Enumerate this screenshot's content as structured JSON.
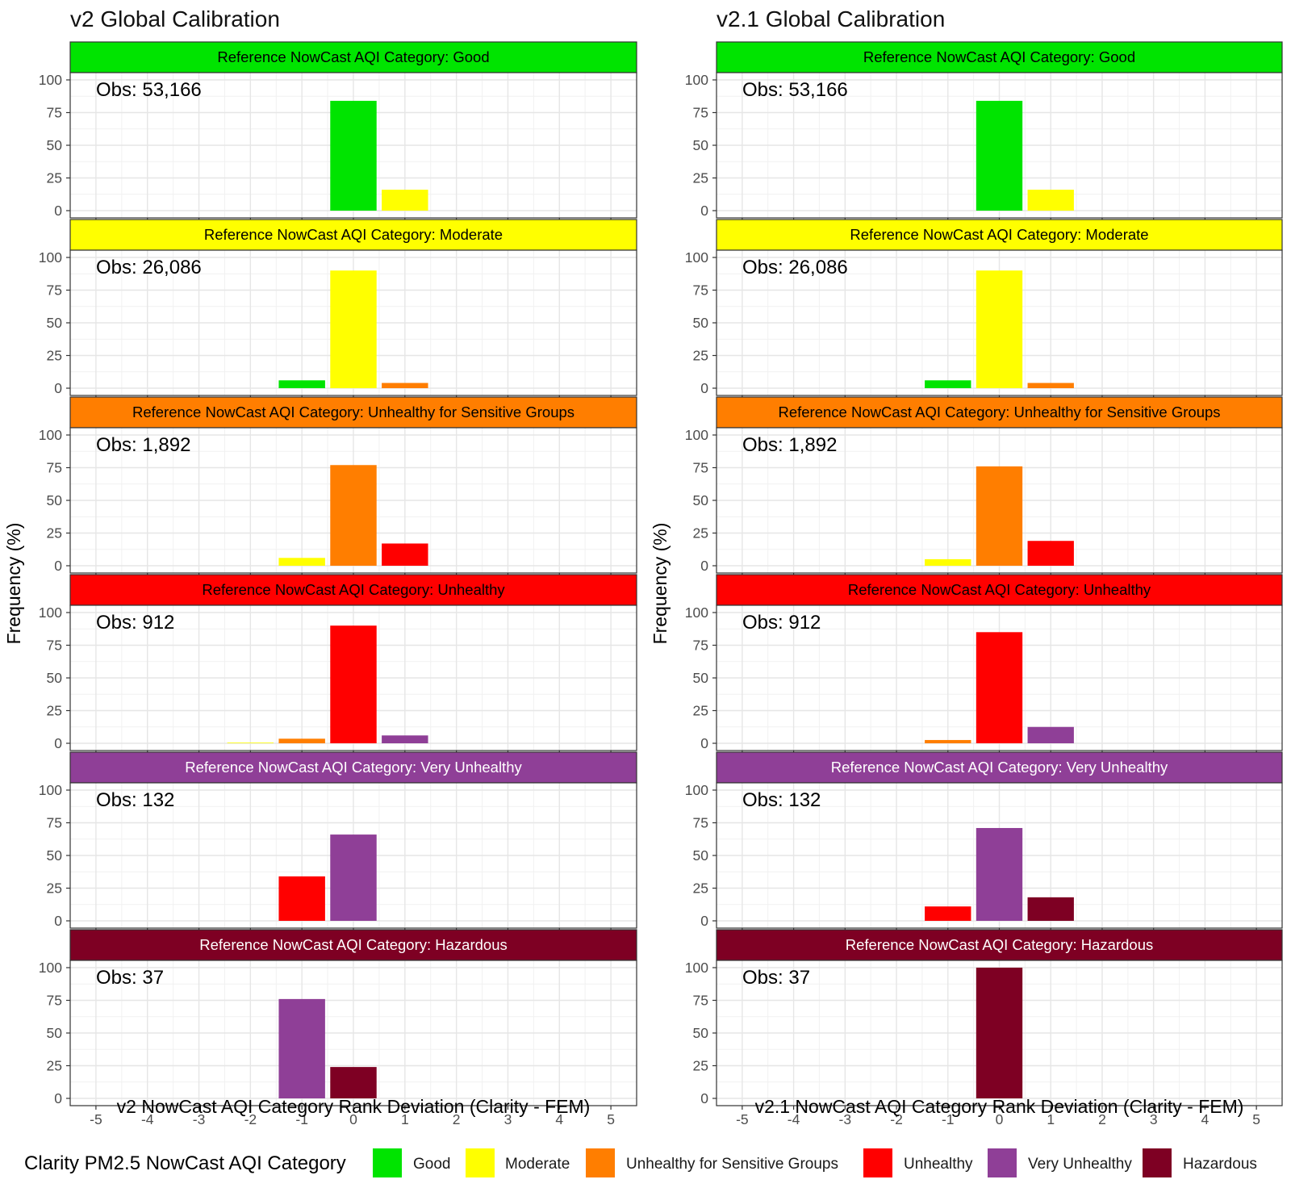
{
  "figure": {
    "ylabel": "Frequency (%)",
    "legend_title": "Clarity PM2.5 NowCast AQI Category",
    "legend": [
      {
        "label": "Good",
        "color": "#00E400"
      },
      {
        "label": "Moderate",
        "color": "#FFFF00"
      },
      {
        "label": "Unhealthy for Sensitive Groups",
        "color": "#FF7E00"
      },
      {
        "label": "Unhealthy",
        "color": "#FF0000"
      },
      {
        "label": "Very Unhealthy",
        "color": "#8F3F97"
      },
      {
        "label": "Hazardous",
        "color": "#7E0023"
      }
    ]
  },
  "chart_data": [
    {
      "type": "bar",
      "title": "v2 Global Calibration",
      "xlabel": "v2 NowCast AQI Category Rank Deviation (Clarity - FEM)",
      "ylabel": "Frequency (%)",
      "x_ticks": [
        -5,
        -4,
        -3,
        -2,
        -1,
        0,
        1,
        2,
        3,
        4,
        5
      ],
      "y_ticks": [
        0,
        25,
        50,
        75,
        100
      ],
      "xlim": [
        -5.5,
        5.5
      ],
      "ylim": [
        0,
        100
      ],
      "grid": true,
      "legend_position": "bottom",
      "facets": [
        {
          "strip": "Reference NowCast AQI Category: Good",
          "strip_color": "#00E400",
          "strip_text_color": "#000000",
          "obs": "Obs: 53,166",
          "bars": [
            {
              "x": 0,
              "value": 84,
              "category": "Good"
            },
            {
              "x": 1,
              "value": 16,
              "category": "Moderate"
            }
          ]
        },
        {
          "strip": "Reference NowCast AQI Category: Moderate",
          "strip_color": "#FFFF00",
          "strip_text_color": "#000000",
          "obs": "Obs: 26,086",
          "bars": [
            {
              "x": -1,
              "value": 6,
              "category": "Good"
            },
            {
              "x": 0,
              "value": 90,
              "category": "Moderate"
            },
            {
              "x": 1,
              "value": 4,
              "category": "Unhealthy for Sensitive Groups"
            }
          ]
        },
        {
          "strip": "Reference NowCast AQI Category: Unhealthy for Sensitive Groups",
          "strip_color": "#FF7E00",
          "strip_text_color": "#000000",
          "obs": "Obs: 1,892",
          "bars": [
            {
              "x": -1,
              "value": 6,
              "category": "Moderate"
            },
            {
              "x": 0,
              "value": 77,
              "category": "Unhealthy for Sensitive Groups"
            },
            {
              "x": 1,
              "value": 17,
              "category": "Unhealthy"
            }
          ]
        },
        {
          "strip": "Reference NowCast AQI Category: Unhealthy",
          "strip_color": "#FF0000",
          "strip_text_color": "#000000",
          "obs": "Obs: 912",
          "bars": [
            {
              "x": -2,
              "value": 0.5,
              "category": "Moderate"
            },
            {
              "x": -1,
              "value": 3.5,
              "category": "Unhealthy for Sensitive Groups"
            },
            {
              "x": 0,
              "value": 90,
              "category": "Unhealthy"
            },
            {
              "x": 1,
              "value": 6,
              "category": "Very Unhealthy"
            }
          ]
        },
        {
          "strip": "Reference NowCast AQI Category: Very Unhealthy",
          "strip_color": "#8F3F97",
          "strip_text_color": "#FFFFFF",
          "obs": "Obs: 132",
          "bars": [
            {
              "x": -1,
              "value": 34,
              "category": "Unhealthy"
            },
            {
              "x": 0,
              "value": 66,
              "category": "Very Unhealthy"
            }
          ]
        },
        {
          "strip": "Reference NowCast AQI Category: Hazardous",
          "strip_color": "#7E0023",
          "strip_text_color": "#FFFFFF",
          "obs": "Obs: 37",
          "bars": [
            {
              "x": -1,
              "value": 76,
              "category": "Very Unhealthy"
            },
            {
              "x": 0,
              "value": 24,
              "category": "Hazardous"
            }
          ]
        }
      ]
    },
    {
      "type": "bar",
      "title": "v2.1 Global Calibration",
      "xlabel": "v2.1 NowCast AQI Category Rank Deviation (Clarity - FEM)",
      "ylabel": "Frequency (%)",
      "x_ticks": [
        -5,
        -4,
        -3,
        -2,
        -1,
        0,
        1,
        2,
        3,
        4,
        5
      ],
      "y_ticks": [
        0,
        25,
        50,
        75,
        100
      ],
      "xlim": [
        -5.5,
        5.5
      ],
      "ylim": [
        0,
        100
      ],
      "grid": true,
      "legend_position": "bottom",
      "facets": [
        {
          "strip": "Reference NowCast AQI Category: Good",
          "strip_color": "#00E400",
          "strip_text_color": "#000000",
          "obs": "Obs: 53,166",
          "bars": [
            {
              "x": 0,
              "value": 84,
              "category": "Good"
            },
            {
              "x": 1,
              "value": 16,
              "category": "Moderate"
            }
          ]
        },
        {
          "strip": "Reference NowCast AQI Category: Moderate",
          "strip_color": "#FFFF00",
          "strip_text_color": "#000000",
          "obs": "Obs: 26,086",
          "bars": [
            {
              "x": -1,
              "value": 6,
              "category": "Good"
            },
            {
              "x": 0,
              "value": 90,
              "category": "Moderate"
            },
            {
              "x": 1,
              "value": 4,
              "category": "Unhealthy for Sensitive Groups"
            }
          ]
        },
        {
          "strip": "Reference NowCast AQI Category: Unhealthy for Sensitive Groups",
          "strip_color": "#FF7E00",
          "strip_text_color": "#000000",
          "obs": "Obs: 1,892",
          "bars": [
            {
              "x": -1,
              "value": 5,
              "category": "Moderate"
            },
            {
              "x": 0,
              "value": 76,
              "category": "Unhealthy for Sensitive Groups"
            },
            {
              "x": 1,
              "value": 19,
              "category": "Unhealthy"
            }
          ]
        },
        {
          "strip": "Reference NowCast AQI Category: Unhealthy",
          "strip_color": "#FF0000",
          "strip_text_color": "#000000",
          "obs": "Obs: 912",
          "bars": [
            {
              "x": -1,
              "value": 2.5,
              "category": "Unhealthy for Sensitive Groups"
            },
            {
              "x": 0,
              "value": 85,
              "category": "Unhealthy"
            },
            {
              "x": 1,
              "value": 12.5,
              "category": "Very Unhealthy"
            }
          ]
        },
        {
          "strip": "Reference NowCast AQI Category: Very Unhealthy",
          "strip_color": "#8F3F97",
          "strip_text_color": "#FFFFFF",
          "obs": "Obs: 132",
          "bars": [
            {
              "x": -1,
              "value": 11,
              "category": "Unhealthy"
            },
            {
              "x": 0,
              "value": 71,
              "category": "Very Unhealthy"
            },
            {
              "x": 1,
              "value": 18,
              "category": "Hazardous"
            }
          ]
        },
        {
          "strip": "Reference NowCast AQI Category: Hazardous",
          "strip_color": "#7E0023",
          "strip_text_color": "#FFFFFF",
          "obs": "Obs: 37",
          "bars": [
            {
              "x": 0,
              "value": 100,
              "category": "Hazardous"
            }
          ]
        }
      ]
    }
  ]
}
